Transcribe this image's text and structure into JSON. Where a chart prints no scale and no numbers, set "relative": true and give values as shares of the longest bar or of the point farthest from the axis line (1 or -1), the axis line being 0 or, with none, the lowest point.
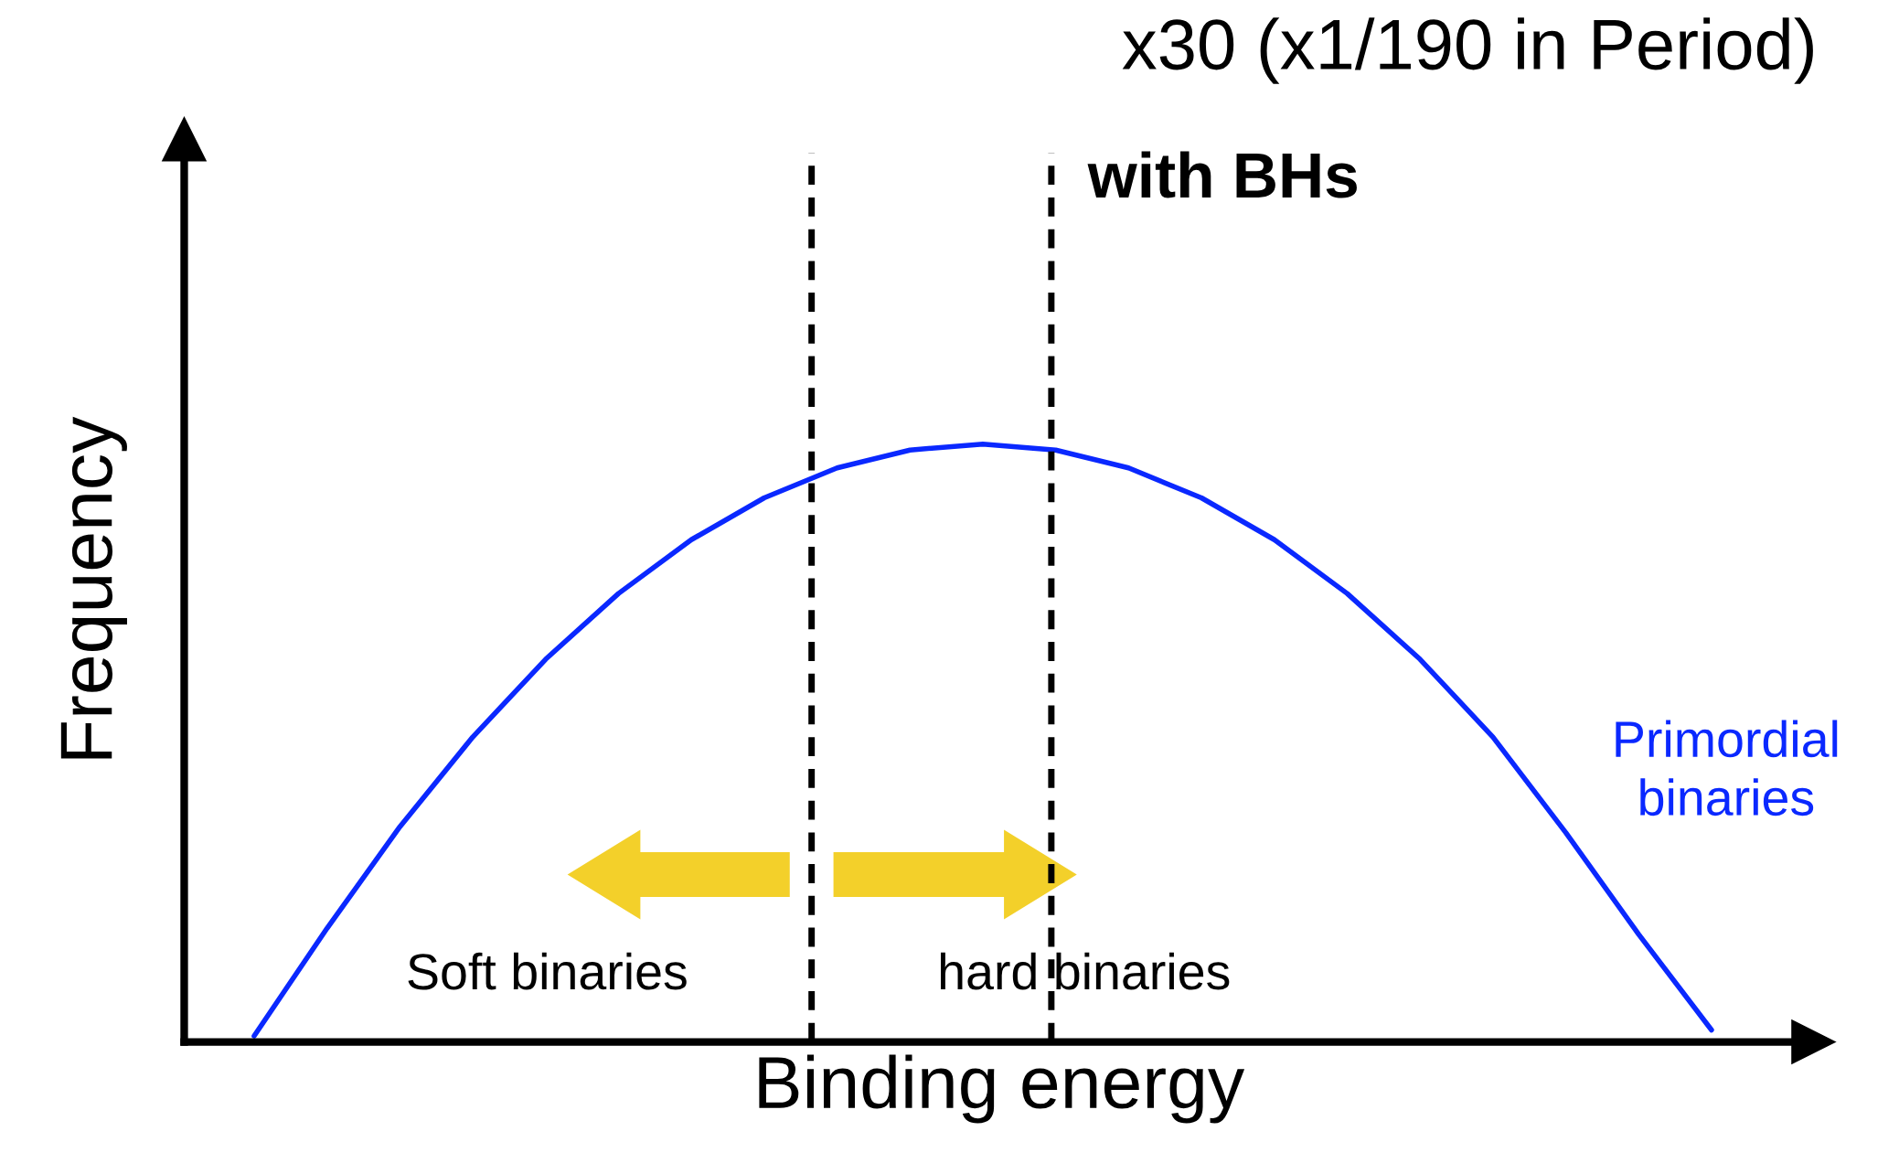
{
  "chart_data": {
    "type": "line",
    "relative": true,
    "xlabel": "Binding energy",
    "ylabel": "Frequency",
    "categories": [
      null,
      null,
      null,
      null,
      null,
      null,
      null,
      null,
      null,
      null,
      null,
      null,
      null,
      null,
      null,
      null,
      null,
      null,
      null,
      null,
      null
    ],
    "series": [
      {
        "name": "Primordial binaries",
        "color": "#0a28ff",
        "values": [
          0.01,
          0.19,
          0.36,
          0.51,
          0.64,
          0.75,
          0.84,
          0.91,
          0.96,
          0.99,
          1.0,
          0.99,
          0.96,
          0.91,
          0.84,
          0.75,
          0.64,
          0.51,
          0.35,
          0.18,
          0.02
        ]
      }
    ],
    "annotations": [
      "x30 (x1/190 in Period)",
      "with BHs",
      "Soft binaries",
      "hard binaries"
    ],
    "legend": false,
    "marker": "none",
    "line_style": "solid"
  }
}
